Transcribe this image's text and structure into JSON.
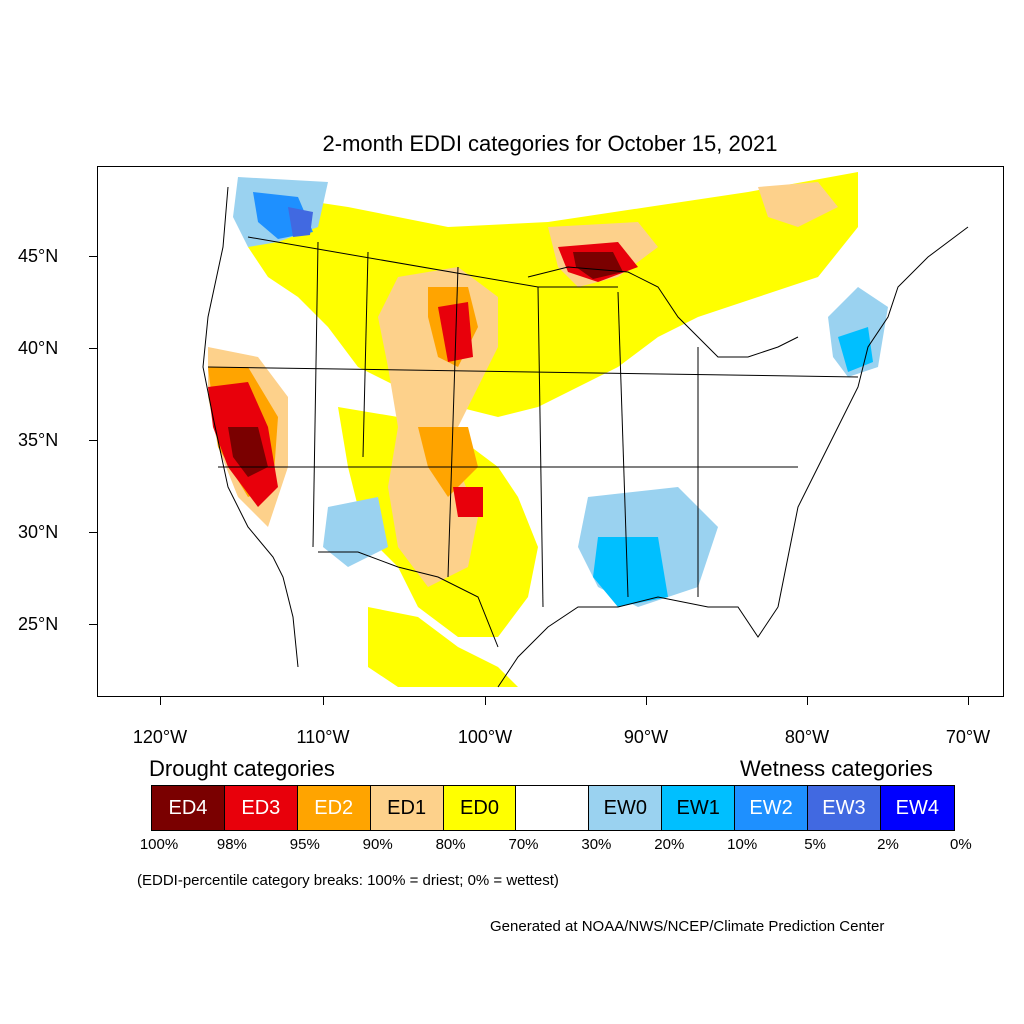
{
  "title": "2-month EDDI categories for October 15, 2021",
  "axes": {
    "y_labels": [
      "45°N",
      "40°N",
      "35°N",
      "30°N",
      "25°N"
    ],
    "x_labels": [
      "120°W",
      "110°W",
      "100°W",
      "90°W",
      "80°W",
      "70°W"
    ]
  },
  "legend": {
    "drought_title": "Drought categories",
    "wetness_title": "Wetness categories",
    "categories": [
      {
        "label": "ED4",
        "color": "#7a0000",
        "text_color": "#ffffff"
      },
      {
        "label": "ED3",
        "color": "#e8000b",
        "text_color": "#ffffff"
      },
      {
        "label": "ED2",
        "color": "#ffa400",
        "text_color": "#ffffff"
      },
      {
        "label": "ED1",
        "color": "#fdd18b",
        "text_color": "#000000"
      },
      {
        "label": "ED0",
        "color": "#ffff00",
        "text_color": "#000000"
      },
      {
        "label": "",
        "color": "#ffffff",
        "text_color": "#000000"
      },
      {
        "label": "EW0",
        "color": "#9ad2f0",
        "text_color": "#000000"
      },
      {
        "label": "EW1",
        "color": "#00bfff",
        "text_color": "#000000"
      },
      {
        "label": "EW2",
        "color": "#1e90ff",
        "text_color": "#ffffff"
      },
      {
        "label": "EW3",
        "color": "#4169e1",
        "text_color": "#ffffff"
      },
      {
        "label": "EW4",
        "color": "#0000ff",
        "text_color": "#ffffff"
      }
    ],
    "percent_breaks": [
      "100%",
      "98%",
      "95%",
      "90%",
      "80%",
      "70%",
      "30%",
      "20%",
      "10%",
      "5%",
      "2%",
      "0%"
    ]
  },
  "note": "(EDDI-percentile category breaks: 100% = driest; 0% = wettest)",
  "credit": "Generated at NOAA/NWS/NCEP/Climate Prediction Center"
}
